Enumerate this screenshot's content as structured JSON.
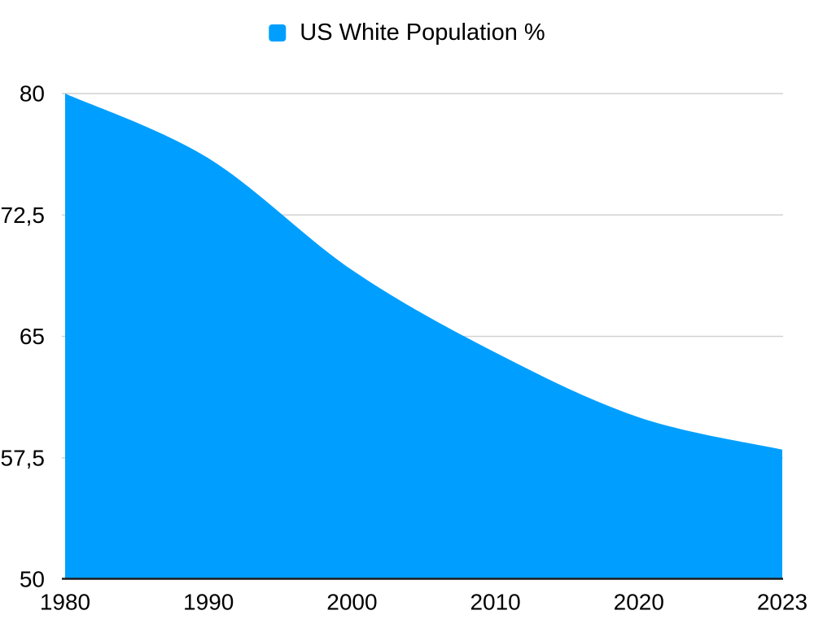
{
  "legend": {
    "label": "US White Population %"
  },
  "chart_data": {
    "type": "area",
    "title": "",
    "categories": [
      "1980",
      "1990",
      "2000",
      "2010",
      "2020",
      "2023"
    ],
    "series": [
      {
        "name": "US White Population %",
        "values": [
          80,
          76,
          69.1,
          64,
          60,
          58
        ]
      }
    ],
    "xlabel": "",
    "ylabel": "",
    "ylim": [
      50,
      80
    ],
    "yticks": {
      "values": [
        80,
        72.5,
        65,
        57.5,
        50
      ],
      "labels": [
        "80",
        "72,5",
        "65",
        "57,5",
        "50"
      ]
    },
    "grid": "horizontal",
    "legend_position": "top-center",
    "smoothing": "catmull-rom",
    "colors": {
      "area_fill": "#009FFF",
      "gridline": "#d2d2d2",
      "axis_line": "#1c1c1c",
      "text": "#000000",
      "background": "#ffffff"
    }
  }
}
